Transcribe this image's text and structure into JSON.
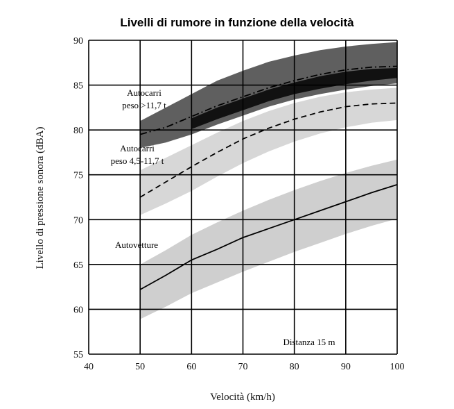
{
  "chart_data": {
    "type": "line",
    "title": "Livelli di rumore in funzione della velocità",
    "xlabel": "Velocità (km/h)",
    "ylabel": "Livello di pressione sonora (dBA)",
    "xlim": [
      40,
      100
    ],
    "ylim": [
      55,
      90
    ],
    "xticks": [
      40,
      50,
      60,
      70,
      80,
      90,
      100
    ],
    "yticks": [
      55,
      60,
      65,
      70,
      75,
      80,
      85,
      90
    ],
    "grid": true,
    "annotation": "Distanza 15 m",
    "series": [
      {
        "name": "Autocarri peso >11,7 t",
        "style": "dash-dot",
        "x": [
          50,
          55,
          60,
          65,
          70,
          75,
          80,
          85,
          90,
          95,
          100
        ],
        "y": [
          79.5,
          80.3,
          81.5,
          82.7,
          83.7,
          84.7,
          85.5,
          86.2,
          86.7,
          87.0,
          87.1
        ],
        "band_lower": [
          78.0,
          78.6,
          79.5,
          80.6,
          81.6,
          82.6,
          83.4,
          84.0,
          84.5,
          84.9,
          85.2
        ],
        "band_upper": [
          81.0,
          82.5,
          84.0,
          85.5,
          86.6,
          87.6,
          88.3,
          88.9,
          89.3,
          89.6,
          89.8
        ]
      },
      {
        "name": "Autocarri peso 4,5-11,7 t",
        "style": "dashed",
        "x": [
          50,
          55,
          60,
          65,
          70,
          75,
          80,
          85,
          90,
          95,
          100
        ],
        "y": [
          72.5,
          74.2,
          75.9,
          77.5,
          79.0,
          80.2,
          81.2,
          82.0,
          82.6,
          82.9,
          83.0
        ],
        "band_lower": [
          70.5,
          71.8,
          73.2,
          74.8,
          76.3,
          77.6,
          78.7,
          79.6,
          80.3,
          80.8,
          81.1
        ],
        "band_upper": [
          75.5,
          76.9,
          78.3,
          79.7,
          81.0,
          82.1,
          83.0,
          83.7,
          84.2,
          84.5,
          84.7
        ]
      },
      {
        "name": "Autovetture",
        "style": "solid",
        "x": [
          50,
          55,
          60,
          65,
          70,
          75,
          80,
          85,
          90,
          95,
          100
        ],
        "y": [
          62.2,
          63.8,
          65.5,
          66.7,
          68.0,
          69.0,
          70.0,
          71.0,
          72.0,
          73.0,
          73.9
        ],
        "band_lower": [
          58.9,
          60.3,
          61.8,
          63.0,
          64.2,
          65.3,
          66.4,
          67.4,
          68.4,
          69.3,
          70.1
        ],
        "band_upper": [
          65.0,
          66.6,
          68.3,
          69.7,
          71.0,
          72.2,
          73.3,
          74.3,
          75.2,
          76.0,
          76.7
        ]
      }
    ]
  },
  "labels": {
    "truck_heavy_line1": "Autocarri",
    "truck_heavy_line2": "peso >11,7 t",
    "truck_medium_line1": "Autocarri",
    "truck_medium_line2": "peso 4,5-11,7 t",
    "cars": "Autovetture"
  },
  "colors": {
    "band_heavy": "#5f5f5f",
    "band_core": "#111111",
    "band_medium": "#d7d7d7",
    "band_cars": "#cfcfcf",
    "grid": "#000000"
  }
}
